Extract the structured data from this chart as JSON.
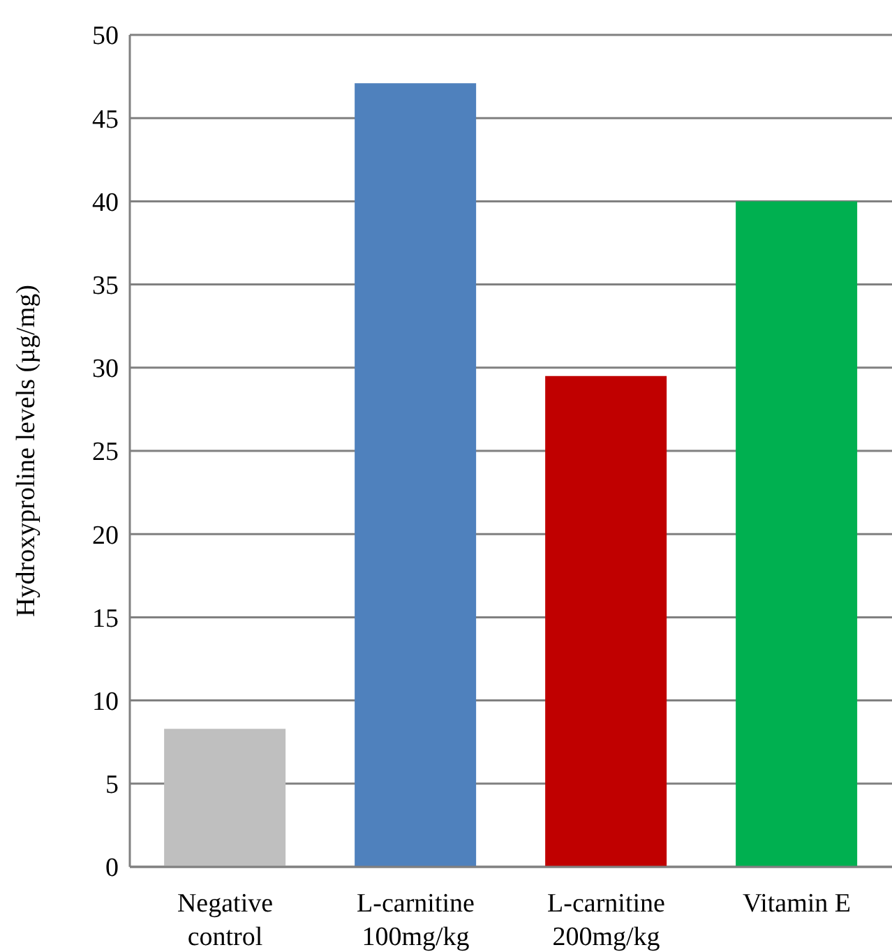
{
  "chart_data": {
    "type": "bar",
    "ylabel": "Hydroxyproline levels (µg/mg)",
    "categories": [
      "Negative control",
      "L-carnitine 100mg/kg",
      "L-carnitine 200mg/kg",
      "Vitamin E"
    ],
    "values": [
      8.3,
      47.1,
      29.5,
      40
    ],
    "colors": [
      "#bfbfbf",
      "#4f81bd",
      "#c00000",
      "#00b050"
    ],
    "ylim": [
      0,
      50
    ],
    "yticks": [
      0,
      5,
      10,
      15,
      20,
      25,
      30,
      35,
      40,
      45,
      50
    ],
    "grid": "y"
  }
}
